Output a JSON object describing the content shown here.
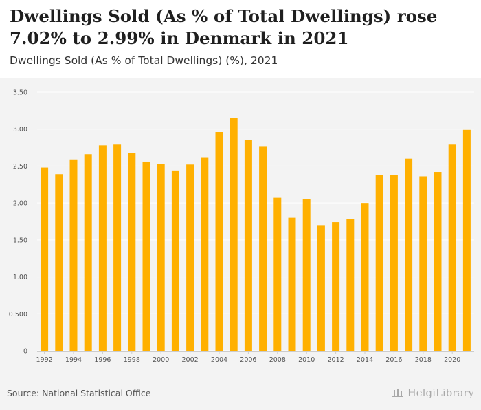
{
  "header": {
    "title": "Dwellings Sold (As % of Total Dwellings) rose 7.02% to 2.99% in Denmark in 2021",
    "subtitle": "Dwellings Sold (As % of Total Dwellings) (%), 2021"
  },
  "footer": {
    "source": "Source: National Statistical Office",
    "brand": "HelgiLibrary"
  },
  "colors": {
    "bar": "#ffb000",
    "plot_background": "#f3f3f3",
    "grid": "#ffffff"
  },
  "chart_data": {
    "type": "bar",
    "categories": [
      "1992",
      "1993",
      "1994",
      "1995",
      "1996",
      "1997",
      "1998",
      "1999",
      "2000",
      "2001",
      "2002",
      "2003",
      "2004",
      "2005",
      "2006",
      "2007",
      "2008",
      "2009",
      "2010",
      "2011",
      "2012",
      "2013",
      "2014",
      "2015",
      "2016",
      "2017",
      "2018",
      "2019",
      "2020",
      "2021"
    ],
    "values": [
      2.48,
      2.39,
      2.59,
      2.66,
      2.78,
      2.79,
      2.68,
      2.56,
      2.53,
      2.44,
      2.52,
      2.62,
      2.96,
      3.15,
      2.85,
      2.77,
      2.07,
      1.8,
      2.05,
      1.7,
      1.74,
      1.78,
      2.0,
      2.38,
      2.38,
      2.6,
      2.36,
      2.42,
      2.79,
      2.99
    ],
    "x_tick_labels": [
      "1992",
      "1994",
      "1996",
      "1998",
      "2000",
      "2002",
      "2004",
      "2006",
      "2008",
      "2010",
      "2012",
      "2014",
      "2016",
      "2018",
      "2020"
    ],
    "y_ticks": [
      0,
      0.5,
      1.0,
      1.5,
      2.0,
      2.5,
      3.0,
      3.5
    ],
    "y_tick_labels": [
      "0",
      "0.500",
      "1.00",
      "1.50",
      "2.00",
      "2.50",
      "3.00",
      "3.50"
    ],
    "ylim": [
      0,
      3.5
    ],
    "title": "Dwellings Sold (As % of Total Dwellings) rose 7.02% to 2.99% in Denmark in 2021",
    "xlabel": "",
    "ylabel": "",
    "grid": true,
    "legend": "none"
  }
}
